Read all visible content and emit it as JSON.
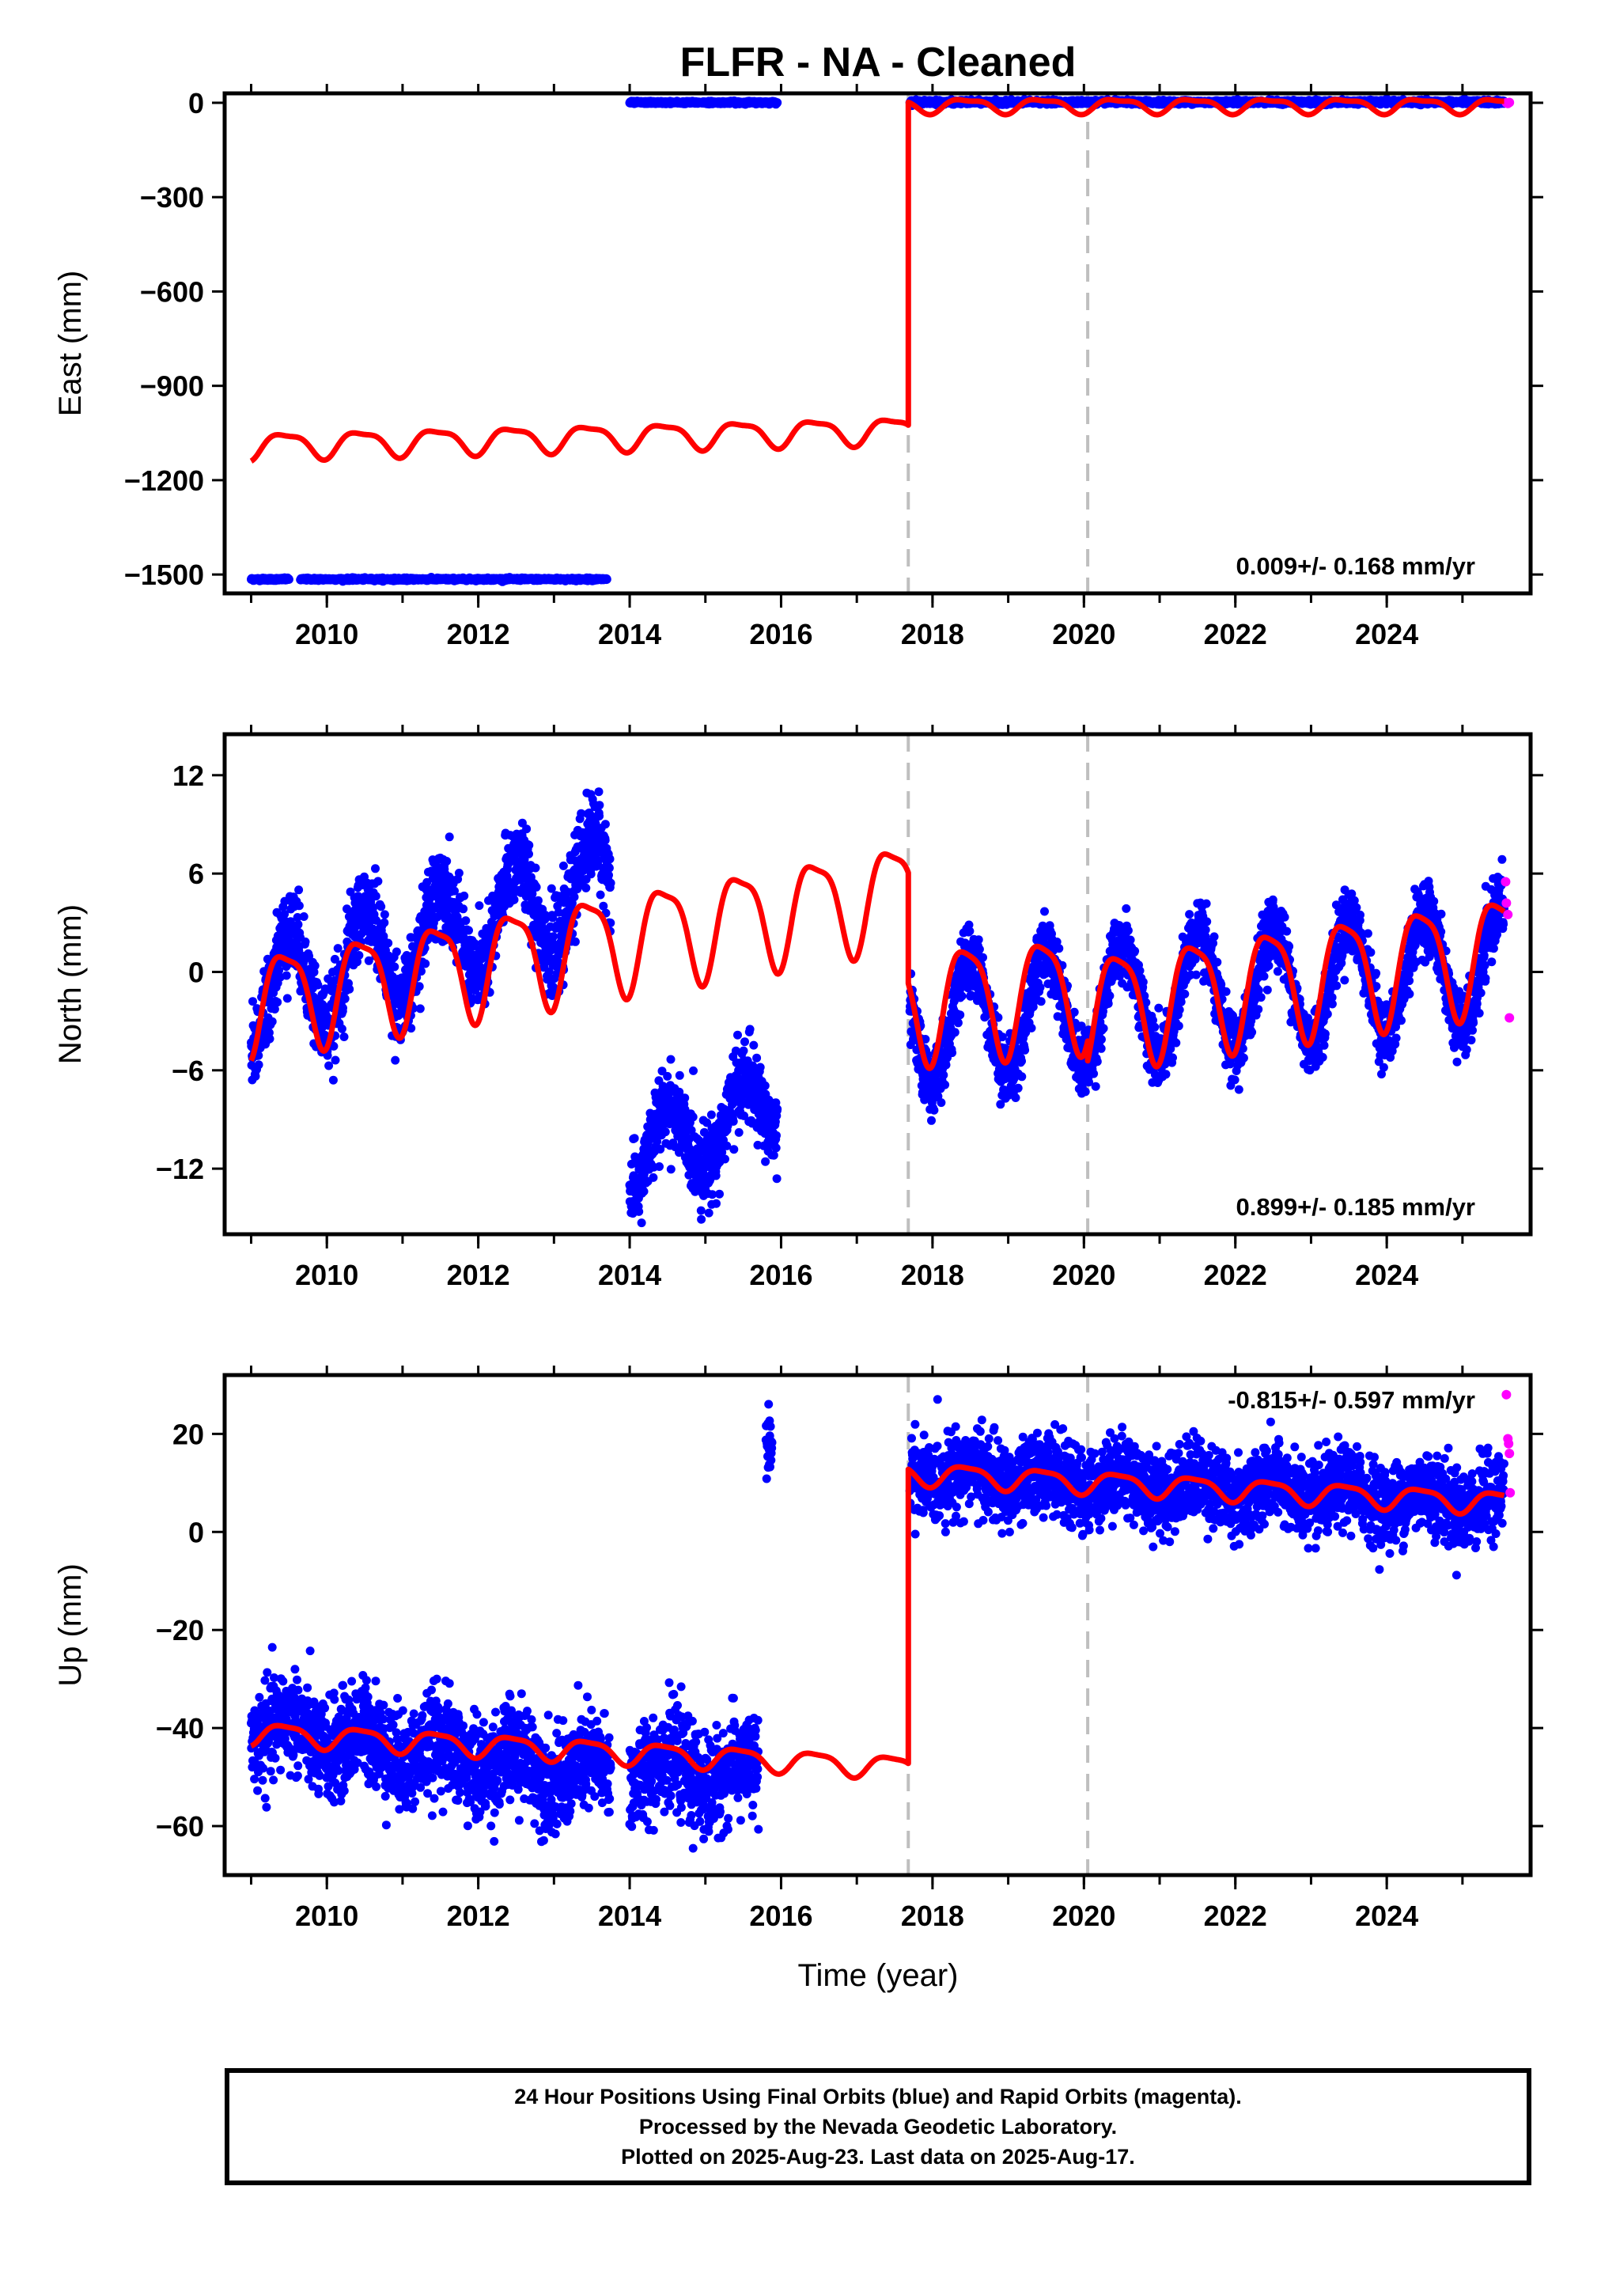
{
  "page": {
    "title": "FLFR  - NA - Cleaned",
    "xlabel": "Time (year)"
  },
  "colors": {
    "final_orbits": "#0000ff",
    "rapid_orbits": "#ff00ff",
    "model_fit": "#ff0000",
    "event_lines": "#bfbfbf",
    "frame": "#000000"
  },
  "chart_data": [
    {
      "type": "scatter",
      "component": "east",
      "ylabel": "East (mm)",
      "ylim": [
        -1560,
        30
      ],
      "yticks": [
        0,
        -300,
        -600,
        -900,
        -1200,
        -1500
      ],
      "xlim": [
        2008.65,
        2025.9
      ],
      "xticks": [
        2010,
        2012,
        2014,
        2016,
        2018,
        2020,
        2022,
        2024
      ],
      "rate_label": "0.009+/- 0.168 mm/yr",
      "event_lines": [
        2017.68,
        2020.05
      ],
      "observations": [
        {
          "x": [
            2009.0,
            2009.5
          ],
          "level": -1515,
          "amp": 2
        },
        {
          "x": [
            2009.65,
            2013.7
          ],
          "level": -1515,
          "amp": 2
        },
        {
          "x": [
            2014.0,
            2015.95
          ],
          "level": 1,
          "amp": 2
        },
        {
          "x": [
            2017.7,
            2025.55
          ],
          "level": 2,
          "amp": 3
        }
      ],
      "rapid_points": [
        [
          2025.58,
          0
        ],
        [
          2025.6,
          -2
        ],
        [
          2025.62,
          1
        ]
      ],
      "model": {
        "segments": [
          {
            "x": [
              2009.0,
              2017.68
            ],
            "start": -1090,
            "end": -1040,
            "annual_amp": 40,
            "semiannual_amp": 12
          },
          {
            "x": [
              2017.68,
              2025.55
            ],
            "start": -8,
            "end": -8,
            "annual_amp": 22,
            "semiannual_amp": 8
          }
        ]
      }
    },
    {
      "type": "scatter",
      "component": "north",
      "ylabel": "North (mm)",
      "ylim": [
        -16,
        14.5
      ],
      "yticks": [
        12,
        6,
        0,
        -6,
        -12
      ],
      "xlim": [
        2008.65,
        2025.9
      ],
      "xticks": [
        2010,
        2012,
        2014,
        2016,
        2018,
        2020,
        2022,
        2024
      ],
      "rate_label": "0.899+/- 0.185 mm/yr",
      "event_lines": [
        2017.68,
        2020.05
      ],
      "observations": [
        {
          "x": [
            2009.0,
            2013.75
          ],
          "start": -1.5,
          "end": 5.5,
          "annual_amp": 3.2,
          "noise": 1.3
        },
        {
          "x": [
            2014.0,
            2015.95
          ],
          "start": -11.5,
          "end": -8,
          "annual_amp": 2.2,
          "noise": 1.2
        },
        {
          "x": [
            2017.7,
            2025.55
          ],
          "start": -3.2,
          "end": 0.5,
          "annual_amp": 3.6,
          "noise": 1.0
        }
      ],
      "rapid_points": [
        [
          2025.57,
          5.5
        ],
        [
          2025.58,
          4.2
        ],
        [
          2025.6,
          3.5
        ],
        [
          2025.62,
          -2.8
        ]
      ],
      "model": {
        "segments": [
          {
            "x": [
              2009.0,
              2017.68
            ],
            "start": -1.8,
            "end": 5.0,
            "annual_amp": 3.0,
            "semiannual_amp": 0.8
          },
          {
            "x": [
              2017.68,
              2020.05
            ],
            "start": -1.8,
            "end": -1.0,
            "annual_amp": 3.4,
            "semiannual_amp": 0.8
          },
          {
            "x": [
              2020.05,
              2025.55
            ],
            "start": -2.2,
            "end": 1.4,
            "annual_amp": 3.4,
            "semiannual_amp": 0.8
          }
        ]
      }
    },
    {
      "type": "scatter",
      "component": "up",
      "ylabel": "Up (mm)",
      "ylim": [
        -70,
        32
      ],
      "yticks": [
        20,
        0,
        -20,
        -40,
        -60
      ],
      "xlim": [
        2008.65,
        2025.9
      ],
      "xticks": [
        2010,
        2012,
        2014,
        2016,
        2018,
        2020,
        2022,
        2024
      ],
      "rate_label": "-0.815+/- 0.597 mm/yr",
      "event_lines": [
        2017.68,
        2020.05
      ],
      "observations": [
        {
          "x": [
            2009.0,
            2013.75
          ],
          "start": -40,
          "end": -50,
          "annual_amp": 3,
          "noise": 5
        },
        {
          "x": [
            2014.0,
            2015.7
          ],
          "start": -48,
          "end": -50,
          "annual_amp": 3,
          "noise": 5
        },
        {
          "x": [
            2015.8,
            2015.88
          ],
          "start": 17,
          "end": 17,
          "annual_amp": 0,
          "noise": 4
        },
        {
          "x": [
            2017.7,
            2025.55
          ],
          "start": 12,
          "end": 6,
          "annual_amp": 2,
          "noise": 4
        }
      ],
      "rapid_points": [
        [
          2025.58,
          28
        ],
        [
          2025.6,
          19
        ],
        [
          2025.61,
          18
        ],
        [
          2025.62,
          16
        ],
        [
          2025.63,
          8
        ]
      ],
      "model": {
        "segments": [
          {
            "x": [
              2009.0,
              2017.68
            ],
            "start": -41,
            "end": -48,
            "annual_amp": 2.2,
            "semiannual_amp": 0.6
          },
          {
            "x": [
              2017.68,
              2025.55
            ],
            "start": 12,
            "end": 6,
            "annual_amp": 2.2,
            "semiannual_amp": 0.6
          }
        ]
      }
    }
  ],
  "footer": {
    "line1": "24 Hour Positions Using Final Orbits (blue) and Rapid Orbits (magenta).",
    "line2": "Processed by the Nevada Geodetic Laboratory.",
    "line3": "Plotted on 2025-Aug-23. Last data on 2025-Aug-17."
  }
}
